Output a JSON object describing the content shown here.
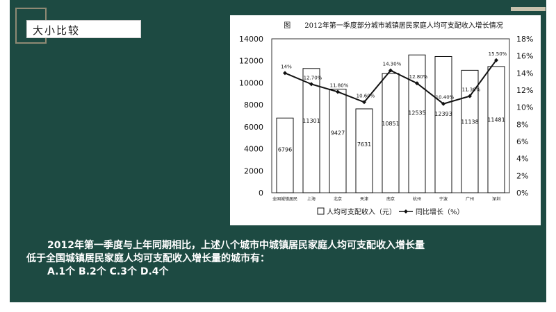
{
  "slide": {
    "title": "大小比较",
    "question_line1": "2012年第一季度与上年同期相比，上述八个城市中城镇居民家庭人均可支配收入增长量",
    "question_line2": "低于全国城镇居民家庭人均可支配收入增长量的城市有：",
    "options": "A.1个    B.2个    C.3个    D.4个"
  },
  "colors": {
    "background": "#1d4a42",
    "accent": "#c7c2ad",
    "frame": "#8f8a74"
  },
  "chart_data": {
    "type": "bar",
    "title": "图　　2012年第一季度部分城市城镇居民家庭人均可支配收入增长情况",
    "categories": [
      "全国城镇居民",
      "上海",
      "北京",
      "天津",
      "南京",
      "杭州",
      "宁波",
      "广州",
      "深圳"
    ],
    "series": [
      {
        "name": "人均可支配收入（元）",
        "type": "bar",
        "axis": "left",
        "values": [
          6796,
          11301,
          9427,
          7631,
          10851,
          12535,
          12393,
          11138,
          11481
        ],
        "labels": [
          "6796",
          "11301",
          "9427",
          "7631",
          "10851",
          "12535",
          "12393",
          "11138",
          "11481"
        ]
      },
      {
        "name": "同比增长（%）",
        "type": "line",
        "axis": "right",
        "values": [
          14.0,
          12.7,
          11.8,
          10.6,
          14.3,
          12.8,
          10.4,
          11.3,
          15.5
        ],
        "labels": [
          "14%",
          "12.70%",
          "11.80%",
          "10.60%",
          "14.30%",
          "12.80%",
          "10.40%",
          "11.30%",
          "15.50%"
        ]
      }
    ],
    "left_axis": {
      "min": 0,
      "max": 14000,
      "ticks": [
        "0",
        "2000",
        "4000",
        "6000",
        "8000",
        "10000",
        "12000",
        "14000"
      ]
    },
    "right_axis": {
      "min": 0,
      "max": 18,
      "ticks": [
        "0%",
        "2%",
        "4%",
        "6%",
        "8%",
        "10%",
        "12%",
        "14%",
        "16%",
        "18%"
      ]
    },
    "legend_position": "bottom"
  }
}
